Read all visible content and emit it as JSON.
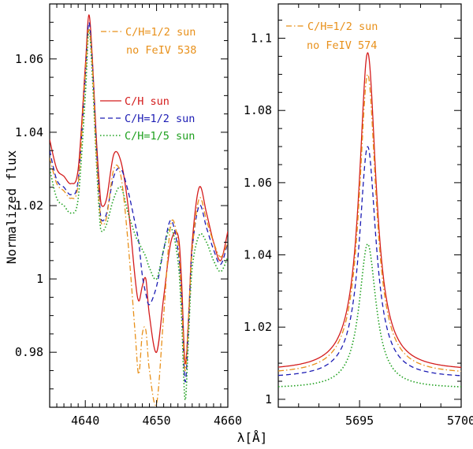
{
  "ylabel": "Normalized flux",
  "xlabel": "λ[Å]",
  "chart_data": [
    {
      "type": "line",
      "panel": "left",
      "xlim": [
        4635,
        4660
      ],
      "ylim": [
        0.965,
        1.075
      ],
      "xticks": [
        4640,
        4650,
        4660
      ],
      "yticks": [
        0.98,
        1,
        1.02,
        1.04,
        1.06
      ],
      "ytick_labels": [
        "0.98",
        "1",
        "1.02",
        "1.04",
        "1.06"
      ],
      "annotation": [
        "C/H=1/2 sun",
        "no FeIV 538"
      ],
      "annotation_color": "#e8901a",
      "legend": [
        {
          "label": "C/H sun",
          "color": "#d41c1c",
          "dash": "solid"
        },
        {
          "label": "C/H=1/2 sun",
          "color": "#1c1cb4",
          "dash": "dashed"
        },
        {
          "label": "C/H=1/5 sun",
          "color": "#1ea01e",
          "dash": "dotted"
        }
      ],
      "series": [
        {
          "name": "C/H sun",
          "color": "#d41c1c",
          "dash": "solid",
          "x": [
            4635,
            4636,
            4637,
            4638,
            4639,
            4640,
            4640.5,
            4641,
            4641.5,
            4642,
            4642.3,
            4643,
            4644,
            4645,
            4646,
            4647,
            4647.5,
            4648,
            4648.5,
            4649,
            4650,
            4651,
            4652,
            4653,
            4653.5,
            4654,
            4654.5,
            4655,
            4656,
            4657,
            4658,
            4659,
            4660
          ],
          "y": [
            1.038,
            1.03,
            1.028,
            1.026,
            1.03,
            1.058,
            1.072,
            1.06,
            1.04,
            1.025,
            1.02,
            1.022,
            1.034,
            1.032,
            1.02,
            1.0,
            0.994,
            0.998,
            1.0,
            0.99,
            0.98,
            0.995,
            1.01,
            1.012,
            1.0,
            0.977,
            0.99,
            1.01,
            1.025,
            1.018,
            1.01,
            1.005,
            1.013
          ]
        },
        {
          "name": "C/H=1/2 sun",
          "color": "#1c1cb4",
          "dash": "dashed",
          "x": [
            4635,
            4636,
            4637,
            4638,
            4639,
            4640,
            4640.5,
            4641,
            4641.5,
            4642,
            4642.3,
            4643,
            4644,
            4645,
            4646,
            4647,
            4647.5,
            4648,
            4648.5,
            4649,
            4650,
            4651,
            4652,
            4653,
            4653.5,
            4654,
            4654.5,
            4655,
            4656,
            4657,
            4658,
            4659,
            4660
          ],
          "y": [
            1.035,
            1.027,
            1.025,
            1.023,
            1.027,
            1.055,
            1.07,
            1.058,
            1.038,
            1.021,
            1.016,
            1.018,
            1.028,
            1.03,
            1.024,
            1.015,
            1.01,
            1.001,
            0.996,
            0.993,
            0.998,
            1.008,
            1.016,
            1.008,
            0.995,
            0.972,
            0.988,
            1.008,
            1.02,
            1.014,
            1.008,
            1.004,
            1.01
          ]
        },
        {
          "name": "C/H=1/5 sun",
          "color": "#1ea01e",
          "dash": "dotted",
          "x": [
            4635,
            4636,
            4637,
            4638,
            4639,
            4640,
            4640.5,
            4641,
            4641.5,
            4642,
            4642.3,
            4643,
            4644,
            4645,
            4646,
            4647,
            4647.5,
            4648,
            4648.5,
            4649,
            4650,
            4651,
            4652,
            4653,
            4653.5,
            4654,
            4654.5,
            4655,
            4656,
            4657,
            4658,
            4659,
            4660
          ],
          "y": [
            1.03,
            1.022,
            1.02,
            1.018,
            1.022,
            1.05,
            1.068,
            1.055,
            1.034,
            1.017,
            1.013,
            1.015,
            1.022,
            1.025,
            1.018,
            1.012,
            1.01,
            1.008,
            1.006,
            1.003,
            1.0,
            1.008,
            1.014,
            1.005,
            0.99,
            0.967,
            0.985,
            1.003,
            1.012,
            1.01,
            1.005,
            1.002,
            1.006
          ]
        },
        {
          "name": "C/H=1/2 sun, no FeIV 538",
          "color": "#e8901a",
          "dash": "dashdot",
          "x": [
            4635,
            4636,
            4637,
            4638,
            4639,
            4640,
            4640.5,
            4641,
            4641.5,
            4642,
            4642.3,
            4643,
            4644,
            4645,
            4646,
            4647,
            4647.5,
            4648,
            4648.5,
            4649,
            4650,
            4651,
            4652,
            4653,
            4653.5,
            4654,
            4654.5,
            4655,
            4656,
            4657,
            4658,
            4659,
            4660
          ],
          "y": [
            1.033,
            1.026,
            1.024,
            1.022,
            1.026,
            1.056,
            1.068,
            1.058,
            1.036,
            1.02,
            1.015,
            1.017,
            1.03,
            1.028,
            1.01,
            0.985,
            0.974,
            0.985,
            0.986,
            0.975,
            0.966,
            0.99,
            1.015,
            1.01,
            0.995,
            0.975,
            0.99,
            1.008,
            1.022,
            1.016,
            1.01,
            1.006,
            1.01
          ]
        }
      ]
    },
    {
      "type": "line",
      "panel": "right",
      "xlim": [
        5691,
        5700
      ],
      "ylim": [
        0.9978,
        1.1095
      ],
      "xticks": [
        5695,
        5700
      ],
      "yticks": [
        1,
        1.02,
        1.04,
        1.06,
        1.08,
        1.1
      ],
      "ytick_labels": [
        "1",
        "1.02",
        "1.04",
        "1.06",
        "1.08",
        "1.1"
      ],
      "annotation": [
        "C/H=1/2 sun",
        "no FeIV 574"
      ],
      "annotation_color": "#e8901a",
      "series": [
        {
          "name": "C/H sun",
          "color": "#d41c1c",
          "dash": "solid",
          "center": 5695.4,
          "base": 1.0078,
          "peak": 1.096,
          "width": 0.5
        },
        {
          "name": "C/H=1/2 sun, no FeIV 574",
          "color": "#e8901a",
          "dash": "dashdot",
          "center": 5695.4,
          "base": 1.0068,
          "peak": 1.09,
          "width": 0.5
        },
        {
          "name": "C/H=1/2 sun",
          "color": "#1c1cb4",
          "dash": "dashed",
          "center": 5695.4,
          "base": 1.0058,
          "peak": 1.07,
          "width": 0.5
        },
        {
          "name": "C/H=1/5 sun",
          "color": "#1ea01e",
          "dash": "dotted",
          "center": 5695.4,
          "base": 1.003,
          "peak": 1.043,
          "width": 0.5
        }
      ]
    }
  ]
}
